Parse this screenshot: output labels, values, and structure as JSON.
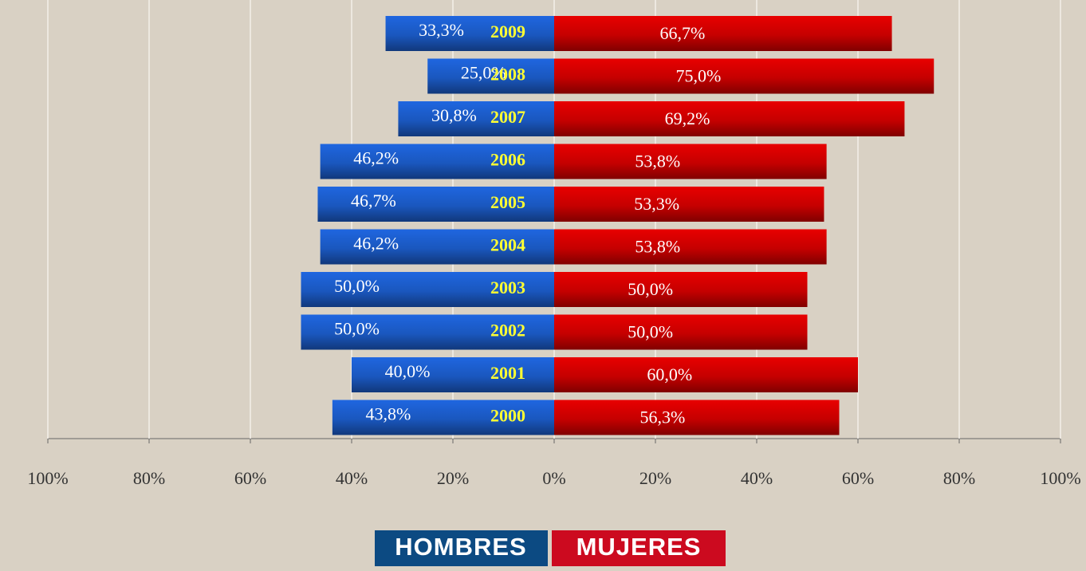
{
  "chart_data": {
    "type": "diverging_bar",
    "categories": [
      "2009",
      "2008",
      "2007",
      "2006",
      "2005",
      "2004",
      "2003",
      "2002",
      "2001",
      "2000"
    ],
    "series": [
      {
        "name": "HOMBRES",
        "color": "#1f66e0",
        "values": [
          33.3,
          25.0,
          30.8,
          46.2,
          46.7,
          46.2,
          50.0,
          50.0,
          40.0,
          43.8
        ],
        "value_labels": [
          "33,3%",
          "25,0%",
          "30,8%",
          "46,2%",
          "46,7%",
          "46,2%",
          "50,0%",
          "50,0%",
          "40,0%",
          "43,8%"
        ]
      },
      {
        "name": "MUJERES",
        "color": "#e80000",
        "values": [
          66.7,
          75.0,
          69.2,
          53.8,
          53.3,
          53.8,
          50.0,
          50.0,
          60.0,
          56.3
        ],
        "value_labels": [
          "66,7%",
          "75,0%",
          "69,2%",
          "53,8%",
          "53,3%",
          "53,8%",
          "50,0%",
          "50,0%",
          "60,0%",
          "56,3%"
        ]
      }
    ],
    "xlim": [
      -100,
      100
    ],
    "xticks": [
      {
        "value": -100,
        "label": "100%"
      },
      {
        "value": -80,
        "label": "80%"
      },
      {
        "value": -60,
        "label": "60%"
      },
      {
        "value": -40,
        "label": "40%"
      },
      {
        "value": -20,
        "label": "20%"
      },
      {
        "value": 0,
        "label": "0%"
      },
      {
        "value": 20,
        "label": "20%"
      },
      {
        "value": 40,
        "label": "40%"
      },
      {
        "value": 60,
        "label": "60%"
      },
      {
        "value": 80,
        "label": "80%"
      },
      {
        "value": 100,
        "label": "100%"
      }
    ],
    "grid": true
  }
}
